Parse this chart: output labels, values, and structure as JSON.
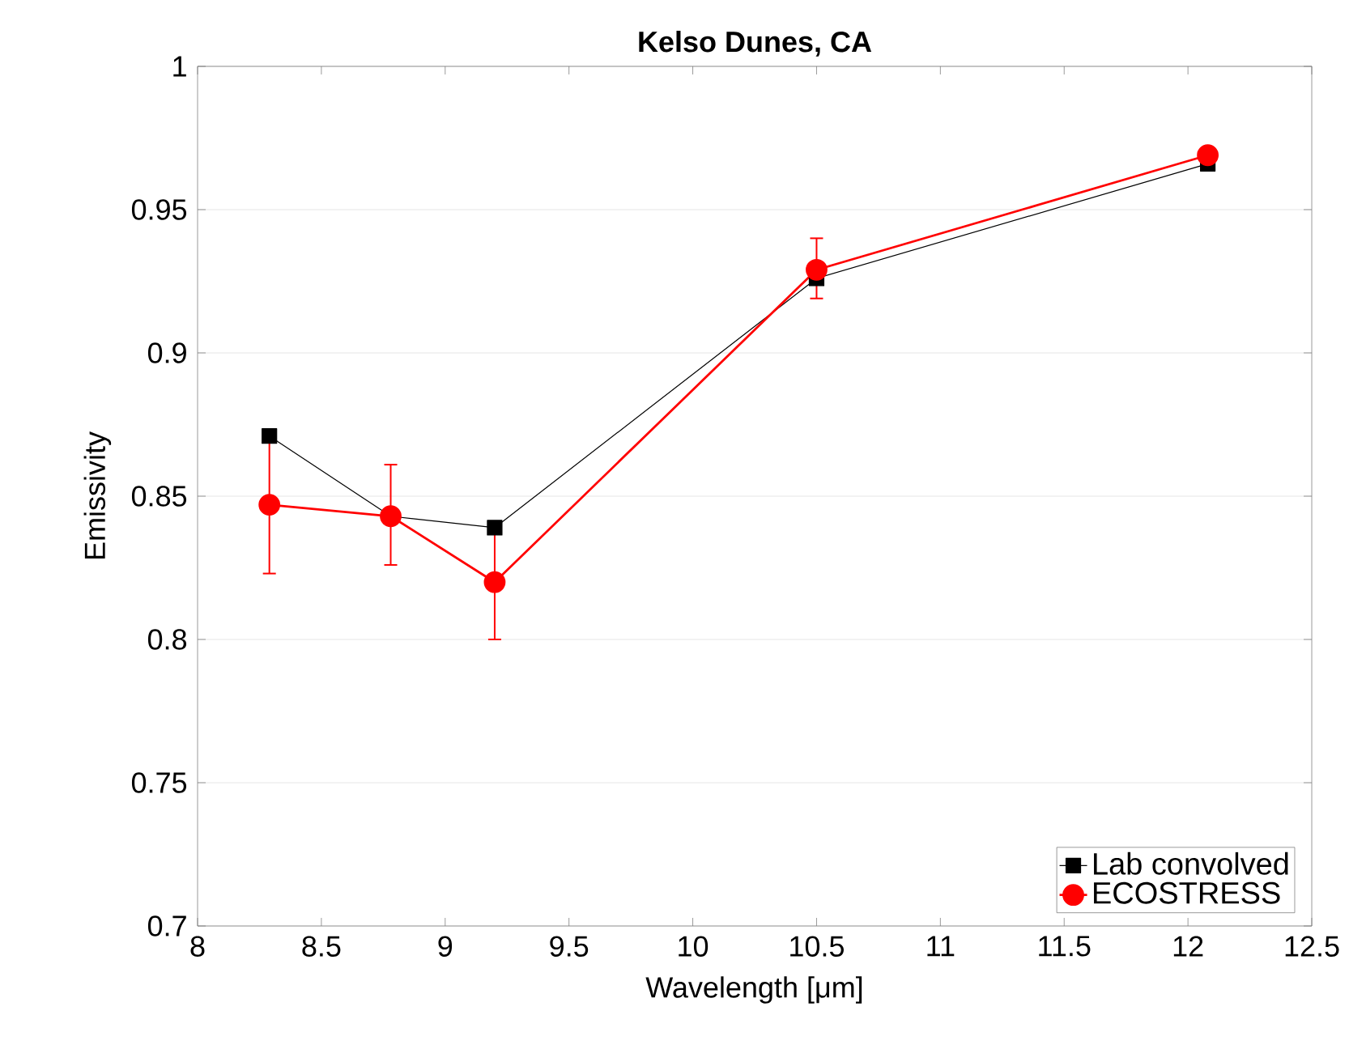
{
  "chart_data": {
    "type": "line",
    "title": "Kelso Dunes, CA",
    "xlabel": "Wavelength [μm]",
    "ylabel": "Emissivity",
    "x": [
      8.29,
      8.78,
      9.2,
      10.5,
      12.08
    ],
    "series": [
      {
        "name": "Lab convolved",
        "color": "#000000",
        "marker": "square",
        "values": [
          0.871,
          0.843,
          0.839,
          0.926,
          0.966
        ]
      },
      {
        "name": "ECOSTRESS",
        "color": "#ff0000",
        "marker": "circle",
        "values": [
          0.847,
          0.843,
          0.82,
          0.929,
          0.969
        ],
        "errors": [
          [
            0.823,
            0.87
          ],
          [
            0.826,
            0.861
          ],
          [
            0.8,
            0.838
          ],
          [
            0.919,
            0.94
          ],
          null
        ]
      }
    ],
    "xlim": [
      8,
      12.5
    ],
    "xticks": [
      8,
      8.5,
      9,
      9.5,
      10,
      10.5,
      11,
      11.5,
      12,
      12.5
    ],
    "ylim": [
      0.7,
      1
    ],
    "yticks": [
      0.7,
      0.75,
      0.8,
      0.85,
      0.9,
      0.95,
      1
    ],
    "grid": "y",
    "legend": "bottom right"
  }
}
